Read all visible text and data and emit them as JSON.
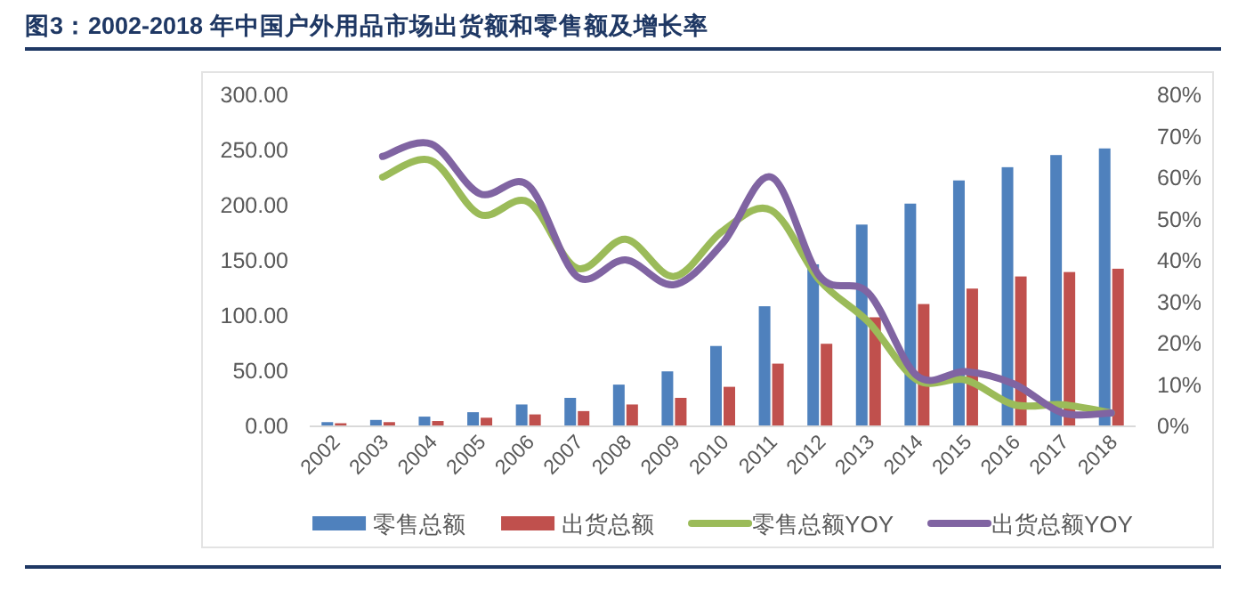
{
  "chart_data": {
    "type": "bar",
    "title": "图3：2002-2018 年中国户外用品市场出货额和零售额及增长率",
    "categories": [
      "2002",
      "2003",
      "2004",
      "2005",
      "2006",
      "2007",
      "2008",
      "2009",
      "2010",
      "2011",
      "2012",
      "2013",
      "2014",
      "2015",
      "2016",
      "2017",
      "2018"
    ],
    "series": [
      {
        "name": "零售总额",
        "color": "#4f81bd",
        "values": [
          3,
          5,
          8,
          12,
          19,
          25,
          37,
          49,
          72,
          108,
          146,
          182,
          201,
          222,
          234,
          245,
          251
        ]
      },
      {
        "name": "出货总额",
        "color": "#c0504d",
        "values": [
          2,
          3,
          4,
          7,
          10,
          13,
          19,
          25,
          35,
          56,
          74,
          98,
          110,
          124,
          135,
          139,
          142
        ]
      },
      {
        "name": "零售总额YOY",
        "type": "line",
        "axis": "y2",
        "color": "#9bbb59",
        "values": [
          null,
          60,
          64,
          51,
          54,
          38,
          45,
          36,
          47,
          52,
          35,
          25,
          11,
          11,
          5,
          5,
          3
        ]
      },
      {
        "name": "出货总额YOY",
        "type": "line",
        "axis": "y2",
        "color": "#8064a2",
        "values": [
          null,
          65,
          68,
          56,
          58,
          36,
          40,
          34,
          44,
          60,
          36,
          32,
          12,
          13,
          10,
          3,
          3
        ]
      }
    ],
    "ylim": [
      0,
      300
    ],
    "yticks": [
      {
        "value": 0,
        "label": "0.00"
      },
      {
        "value": 50,
        "label": "50.00"
      },
      {
        "value": 100,
        "label": "100.00"
      },
      {
        "value": 150,
        "label": "150.00"
      },
      {
        "value": 200,
        "label": "200.00"
      },
      {
        "value": 250,
        "label": "250.00"
      },
      {
        "value": 300,
        "label": "300.00"
      }
    ],
    "y2lim": [
      0,
      80
    ],
    "y2ticks": [
      {
        "value": 0,
        "label": "0%"
      },
      {
        "value": 10,
        "label": "10%"
      },
      {
        "value": 20,
        "label": "20%"
      },
      {
        "value": 30,
        "label": "30%"
      },
      {
        "value": 40,
        "label": "40%"
      },
      {
        "value": 50,
        "label": "50%"
      },
      {
        "value": 60,
        "label": "60%"
      },
      {
        "value": 70,
        "label": "70%"
      },
      {
        "value": 80,
        "label": "80%"
      }
    ],
    "legend": "bottom"
  }
}
